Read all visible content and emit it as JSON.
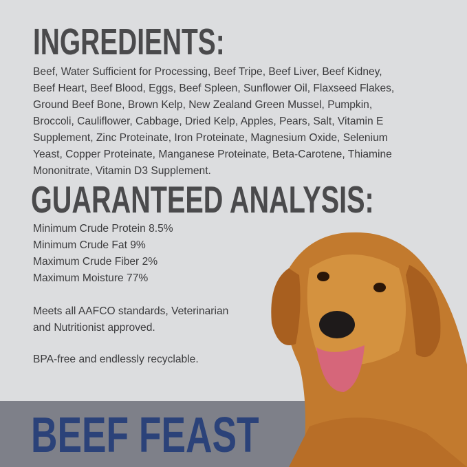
{
  "ingredients": {
    "heading": "INGREDIENTS:",
    "lines": [
      "Beef, Water Sufficient for Processing, Beef Tripe, Beef Liver, Beef Kidney,",
      "Beef Heart, Beef Blood, Eggs, Beef Spleen, Sunflower Oil, Flaxseed Flakes,",
      "Ground Beef Bone, Brown Kelp, New Zealand Green Mussel, Pumpkin,",
      "Broccoli, Cauliflower, Cabbage, Dried Kelp, Apples, Pears, Salt, Vitamin E",
      "Supplement, Zinc Proteinate, Iron Proteinate, Magnesium Oxide, Selenium",
      "Yeast, Copper Proteinate, Manganese Proteinate, Beta-Carotene, Thiamine",
      "Mononitrate, Vitamin D3 Supplement."
    ]
  },
  "analysis": {
    "heading": "GUARANTEED ANALYSIS:",
    "items": [
      "Minimum Crude Protein 8.5%",
      "Minimum Crude Fat 9%",
      "Maximum Crude Fiber 2%",
      "Maximum Moisture 77%"
    ]
  },
  "notes": {
    "aafco_lines": [
      "Meets all AAFCO standards, Veterinarian",
      "and Nutritionist approved."
    ],
    "bpa": "BPA-free and endlessly recyclable."
  },
  "product_name": "BEEF FEAST",
  "colors": {
    "background": "#dcdddf",
    "band": "#7e8089",
    "title": "#2b4279",
    "heading": "#4a4a4c"
  }
}
